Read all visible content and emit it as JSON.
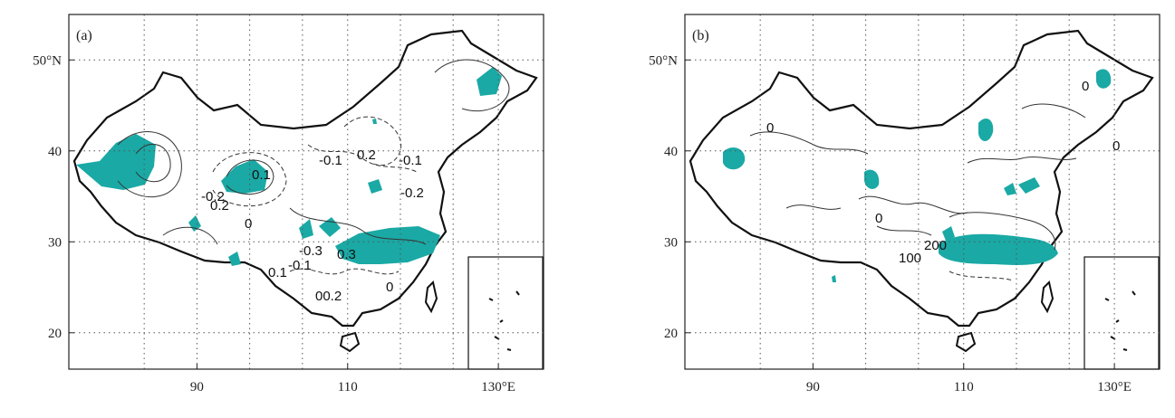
{
  "panels": [
    {
      "id": "a",
      "label": "(a)",
      "contour_labels": [
        "0.1",
        "0.2",
        "0",
        "-0.1",
        "0.2",
        "-0.1",
        "-0.2",
        "-0.2",
        "-0.3",
        "0.3",
        "-0.1",
        "0.1",
        "00.2",
        "0"
      ],
      "shaded_regions": [
        "xinjiang-west",
        "qaidam",
        "tibet-south",
        "northeast",
        "hubei",
        "yangtze-lower"
      ]
    },
    {
      "id": "b",
      "label": "(b)",
      "contour_labels": [
        "0",
        "0",
        "0",
        "100",
        "200",
        "0"
      ],
      "shaded_regions": [
        "xinjiang",
        "qinghai",
        "inner-mongolia",
        "northeast",
        "north-china",
        "yangtze"
      ]
    }
  ],
  "axes": {
    "x_ticks": [
      {
        "value": 90,
        "label": "90"
      },
      {
        "value": 110,
        "label": "110"
      },
      {
        "value": 130,
        "label": "130°E"
      }
    ],
    "y_ticks": [
      {
        "value": 20,
        "label": "20"
      },
      {
        "value": 30,
        "label": "30"
      },
      {
        "value": 40,
        "label": "40"
      },
      {
        "value": 50,
        "label": "50°N"
      }
    ],
    "gridlines_lon": [
      83,
      97,
      104,
      117,
      124
    ],
    "xlim": [
      73,
      136
    ],
    "ylim": [
      16,
      55
    ]
  },
  "colors": {
    "shade": "#1aa9a5",
    "border": "#111111",
    "contour": "#333333",
    "grid": "#555555"
  }
}
